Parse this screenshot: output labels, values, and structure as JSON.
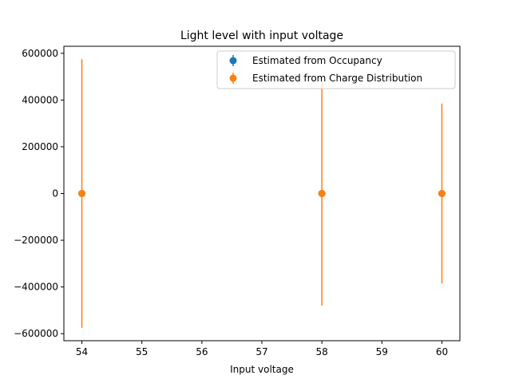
{
  "chart_data": {
    "type": "scatter",
    "title": "Light level with input voltage",
    "xlabel": "Input voltage",
    "ylabel": "",
    "xlim": [
      53.7,
      60.3
    ],
    "ylim": [
      -630000,
      630000
    ],
    "x_ticks": [
      54,
      55,
      56,
      57,
      58,
      59,
      60
    ],
    "x_tick_labels": [
      "54",
      "55",
      "56",
      "57",
      "58",
      "59",
      "60"
    ],
    "y_ticks": [
      -600000,
      -400000,
      -200000,
      0,
      200000,
      400000,
      600000
    ],
    "y_tick_labels": [
      "−600000",
      "−400000",
      "−200000",
      "0",
      "200000",
      "400000",
      "600000"
    ],
    "grid": false,
    "legend_position": "top-right",
    "series": [
      {
        "name": "Estimated from Occupancy",
        "color": "#1f77b4",
        "points": [
          {
            "x": 54,
            "y": 0,
            "yerr": 0
          },
          {
            "x": 58,
            "y": 0,
            "yerr": 0
          },
          {
            "x": 60,
            "y": 0,
            "yerr": 0
          }
        ]
      },
      {
        "name": "Estimated from Charge Distribution",
        "color": "#ff7f0e",
        "points": [
          {
            "x": 54,
            "y": 0,
            "yerr": 575000
          },
          {
            "x": 58,
            "y": 0,
            "yerr": 480000
          },
          {
            "x": 60,
            "y": 0,
            "yerr": 385000
          }
        ]
      }
    ]
  }
}
